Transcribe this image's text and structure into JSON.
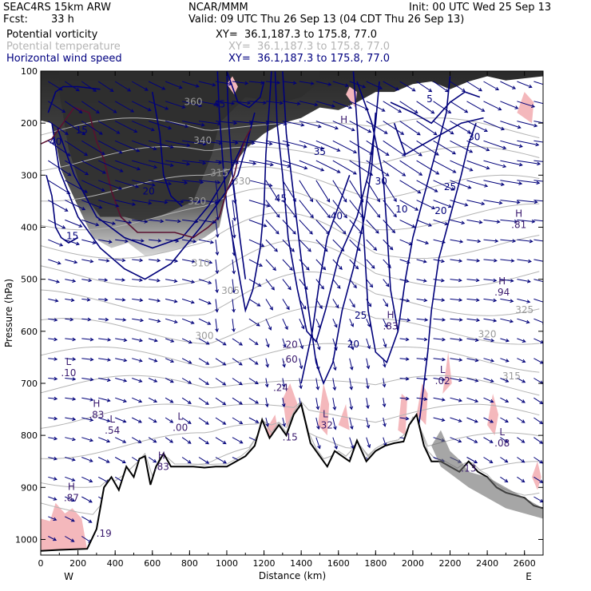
{
  "header": {
    "model": "SEAC4RS 15km ARW",
    "center": "NCAR/MMM",
    "init": "Init: 00 UTC Wed 25 Sep 13",
    "fcst_label": "Fcst:",
    "fcst_value": "33 h",
    "valid": "Valid: 09 UTC Thu 26 Sep 13 (04 CDT Thu 26 Sep 13)"
  },
  "legend": [
    {
      "name": "Potential vorticity",
      "xy": "XY=  36.1,187.3 to 175.8, 77.0",
      "color": "#000000"
    },
    {
      "name": "Potential temperature",
      "xy": "XY=  36.1,187.3 to 175.8, 77.0",
      "color": "#b4b4b4"
    },
    {
      "name": "Horizontal wind speed",
      "xy": "XY=  36.1,187.3 to 175.8, 77.0",
      "color": "#000080"
    }
  ],
  "chart_data": {
    "type": "cross-section",
    "xlabel": "Distance (km)",
    "ylabel": "Pressure (hPa)",
    "xlim": [
      0,
      2700
    ],
    "ylim": [
      1030,
      100
    ],
    "x_ticks": [
      0,
      200,
      400,
      600,
      800,
      1000,
      1200,
      1400,
      1600,
      1800,
      2000,
      2200,
      2400,
      2600
    ],
    "y_ticks": [
      100,
      200,
      300,
      400,
      500,
      600,
      700,
      800,
      900,
      1000
    ],
    "x_end_labels": {
      "left": "W",
      "right": "E"
    },
    "colors": {
      "pv_shading": "#3c3c3c",
      "pv_light": "#f4b8bc",
      "theta": "#b4b4b4",
      "wind": "#00007a",
      "terrain": "#000000"
    },
    "terrain_pressure": {
      "x": [
        0,
        100,
        250,
        300,
        340,
        380,
        420,
        460,
        500,
        530,
        560,
        590,
        620,
        660,
        700,
        760,
        820,
        880,
        940,
        1000,
        1050,
        1100,
        1150,
        1190,
        1230,
        1280,
        1320,
        1360,
        1400,
        1450,
        1500,
        1540,
        1580,
        1620,
        1660,
        1700,
        1750,
        1800,
        1850,
        1900,
        1950,
        1980,
        2020,
        2060,
        2100,
        2150,
        2200,
        2250,
        2300,
        2350,
        2400,
        2450,
        2500,
        2550,
        2600,
        2650,
        2700
      ],
      "p": [
        1022,
        1020,
        1018,
        980,
        900,
        880,
        905,
        860,
        880,
        845,
        840,
        895,
        860,
        835,
        860,
        860,
        860,
        862,
        860,
        860,
        850,
        840,
        820,
        770,
        805,
        780,
        800,
        760,
        740,
        815,
        840,
        860,
        830,
        840,
        850,
        810,
        850,
        830,
        820,
        815,
        812,
        780,
        760,
        820,
        850,
        850,
        860,
        870,
        850,
        870,
        880,
        900,
        910,
        915,
        920,
        935,
        940
      ]
    },
    "theta_contours": [
      {
        "label": "300",
        "x": 880,
        "p": 615
      },
      {
        "label": "305",
        "x": 1020,
        "p": 528
      },
      {
        "label": "310",
        "x": 860,
        "p": 475
      },
      {
        "label": "315",
        "x": 960,
        "p": 302
      },
      {
        "label": "320",
        "x": 840,
        "p": 356
      },
      {
        "label": "325",
        "x": 2600,
        "p": 565
      },
      {
        "label": "320",
        "x": 2400,
        "p": 612
      },
      {
        "label": "315",
        "x": 2530,
        "p": 692
      },
      {
        "label": "330",
        "x": 1080,
        "p": 318
      },
      {
        "label": "340",
        "x": 870,
        "p": 240
      },
      {
        "label": "360",
        "x": 820,
        "p": 165
      }
    ],
    "wind_labels": [
      {
        "label": "45",
        "x": 960,
        "p": 170
      },
      {
        "label": "40",
        "x": 80,
        "p": 242
      },
      {
        "label": "35",
        "x": 1500,
        "p": 261
      },
      {
        "label": "30",
        "x": 1830,
        "p": 318
      },
      {
        "label": "25",
        "x": 1720,
        "p": 576
      },
      {
        "label": "20",
        "x": 1680,
        "p": 631
      },
      {
        "label": "15",
        "x": 170,
        "p": 423
      },
      {
        "label": "10",
        "x": 1940,
        "p": 372
      },
      {
        "label": "20",
        "x": 2150,
        "p": 375
      },
      {
        "label": "25",
        "x": 2200,
        "p": 329
      },
      {
        "label": "30",
        "x": 2330,
        "p": 233
      },
      {
        "label": "40",
        "x": 1590,
        "p": 385
      },
      {
        "label": "45",
        "x": 1290,
        "p": 351
      },
      {
        "label": "20",
        "x": 580,
        "p": 337
      },
      {
        "label": "15",
        "x": 220,
        "p": 220
      },
      {
        "label": "5",
        "x": 2090,
        "p": 160
      }
    ],
    "extrema": [
      {
        "label": "L",
        "value": ".10",
        "x": 150,
        "p": 665
      },
      {
        "label": "H",
        "value": ".83",
        "x": 300,
        "p": 745
      },
      {
        "label": "L",
        "value": ".54",
        "x": 385,
        "p": 775
      },
      {
        "label": "L",
        "value": ".00",
        "x": 750,
        "p": 770
      },
      {
        "label": "H",
        "value": ".83",
        "x": 650,
        "p": 845
      },
      {
        "label": "H",
        "value": ".87",
        "x": 165,
        "p": 905
      },
      {
        "label": ".19",
        "value": "",
        "x": 340,
        "p": 995
      },
      {
        "label": ".24",
        "value": "",
        "x": 1290,
        "p": 715
      },
      {
        "label": ".60",
        "value": "",
        "x": 1340,
        "p": 660
      },
      {
        "label": ".20",
        "value": "",
        "x": 1340,
        "p": 632
      },
      {
        "label": "L",
        "value": ".32",
        "x": 1530,
        "p": 765
      },
      {
        "label": ".15",
        "value": "",
        "x": 1340,
        "p": 810
      },
      {
        "label": "H",
        "value": ".83",
        "x": 1880,
        "p": 575
      },
      {
        "label": "L",
        "value": ".02",
        "x": 2160,
        "p": 680
      },
      {
        "label": "H",
        "value": ".94",
        "x": 2480,
        "p": 510
      },
      {
        "label": "H",
        "value": ".81",
        "x": 2570,
        "p": 380
      },
      {
        "label": "L",
        "value": ".08",
        "x": 2480,
        "p": 800
      },
      {
        "label": ".13",
        "value": "",
        "x": 2300,
        "p": 870
      },
      {
        "label": "H",
        "value": "",
        "x": 1630,
        "p": 200
      }
    ]
  }
}
